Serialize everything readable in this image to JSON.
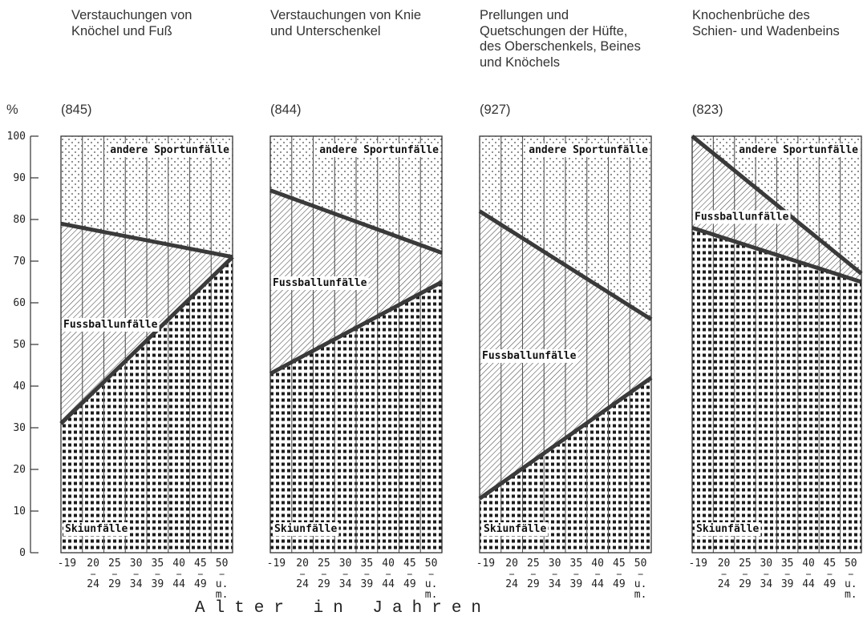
{
  "y_axis_label": "%",
  "x_axis_label": "Alter in Jahren",
  "chart_data": {
    "type": "area",
    "y_ticks": [
      "100",
      "90",
      "80",
      "70",
      "60",
      "50",
      "40",
      "30",
      "20",
      "10",
      "0"
    ],
    "ylim": [
      0,
      100
    ],
    "x_ticks_top": [
      "-19",
      "20",
      "25",
      "30",
      "35",
      "40",
      "45",
      "50"
    ],
    "x_ticks_bottom": [
      "",
      "24",
      "29",
      "34",
      "39",
      "44",
      "49",
      "u."
    ],
    "x_ticks_bottom_extra": [
      "",
      "",
      "",
      "",
      "",
      "",
      "",
      "m."
    ],
    "band_labels": {
      "top": "andere Sportunfälle",
      "middle": "Fussballunfälle",
      "bottom": "Skiunfälle"
    },
    "grid": true,
    "panels": [
      {
        "title": "Verstauchungen von Knöchel und Fuß",
        "count": "(845)",
        "ski": [
          31,
          71
        ],
        "fussball": [
          79,
          71
        ]
      },
      {
        "title": "Verstauchungen von Knie und Unterschenkel",
        "count": "(844)",
        "ski": [
          43,
          65
        ],
        "fussball": [
          87,
          72
        ]
      },
      {
        "title": "Prellungen und Quetschungen der Hüfte, des Oberschenkels, Beines und Knöchels",
        "count": "(927)",
        "ski": [
          13,
          42
        ],
        "fussball": [
          82,
          56
        ]
      },
      {
        "title": "Knochenbrüche des Schien- und Wadenbeins",
        "count": "(823)",
        "ski": [
          78,
          65
        ],
        "fussball": [
          100,
          67
        ]
      }
    ]
  }
}
